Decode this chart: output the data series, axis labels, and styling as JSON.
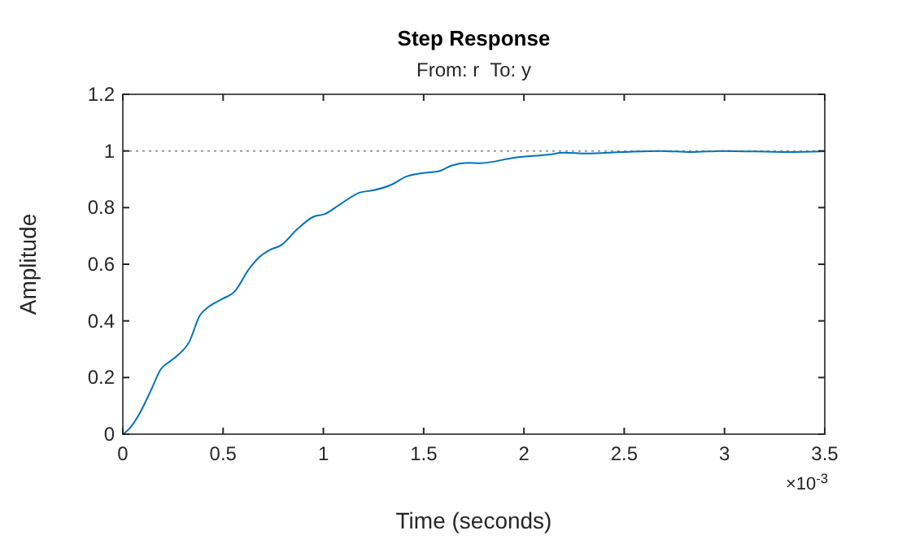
{
  "chart_data": {
    "type": "line",
    "title": "Step Response",
    "subtitle": "From: r  To: y",
    "xlabel": "Time (seconds)",
    "ylabel": "Amplitude",
    "annotations": [
      "×10$^{-3}$"
    ],
    "x": [
      0,
      0.032,
      0.086,
      0.141,
      0.189,
      0.235,
      0.276,
      0.33,
      0.384,
      0.424,
      0.492,
      0.559,
      0.627,
      0.681,
      0.735,
      0.789,
      0.87,
      0.951,
      1.005,
      1.086,
      1.181,
      1.249,
      1.343,
      1.411,
      1.519,
      1.573,
      1.641,
      1.722,
      1.782,
      1.958,
      2.12,
      2.2,
      2.31,
      2.49,
      2.68,
      2.83,
      2.99,
      3.32,
      3.5
    ],
    "series": [
      {
        "color": "#0072bd",
        "values": [
          0,
          0.019,
          0.076,
          0.156,
          0.229,
          0.257,
          0.28,
          0.324,
          0.419,
          0.448,
          0.476,
          0.505,
          0.581,
          0.625,
          0.651,
          0.667,
          0.724,
          0.768,
          0.777,
          0.813,
          0.853,
          0.861,
          0.882,
          0.909,
          0.924,
          0.928,
          0.949,
          0.958,
          0.957,
          0.977,
          0.987,
          0.994,
          0.991,
          0.996,
          1.0,
          0.996,
          1.0,
          0.996,
          0.999
        ]
      }
    ],
    "xlim": [
      0,
      3.5
    ],
    "xticks": [
      0,
      0.5,
      1,
      1.5,
      2,
      2.5,
      3,
      3.5
    ],
    "ylim": [
      0,
      1.2
    ],
    "yticks": [
      0,
      0.2,
      0.4,
      0.6,
      0.8,
      1,
      1.2
    ],
    "ref_lines": [
      {
        "axis": "y",
        "value": 1,
        "color": "#999999",
        "line_style": "dotted"
      }
    ],
    "grid": false,
    "marker": "none",
    "line_style": "solid"
  }
}
